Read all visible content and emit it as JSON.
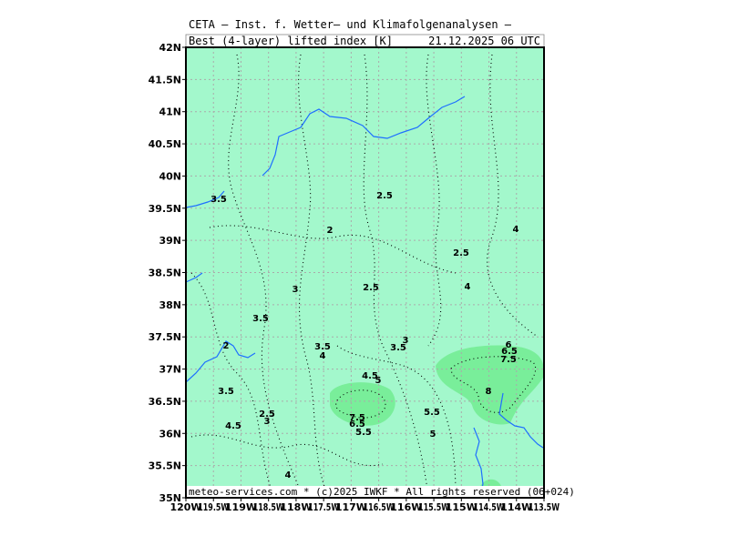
{
  "header": {
    "title": "CETA — Inst. f. Wetter— und Klimafolgenanalysen —",
    "product": "Best_(4-layer)_lifted_index_[K]",
    "valid_time": "21.12.2025 06 UTC"
  },
  "map": {
    "lat_labels": [
      "35N",
      "35.5N",
      "36N",
      "36.5N",
      "37N",
      "37.5N",
      "38N",
      "38.5N",
      "39N",
      "39.5N",
      "40N",
      "40.5N",
      "41N",
      "41.5N",
      "42N"
    ],
    "lon_labels": [
      "120W",
      "119.5W",
      "119W",
      "118.5W",
      "118W",
      "117.5W",
      "117W",
      "116.5W",
      "116W",
      "115.5W",
      "115W",
      "114.5W",
      "114W",
      "113.5W"
    ],
    "contour_labels": [
      "3.5",
      "2.5",
      "2",
      "4",
      "2.5",
      "3",
      "2.5",
      "4",
      "3.5",
      "2",
      "3.5",
      "4",
      "3",
      "3.5",
      "6",
      "6.5",
      "7.5",
      "4.5",
      "5",
      "3.5",
      "8",
      "2.5",
      "3",
      "7.5",
      "6.5",
      "5.5",
      "4.5",
      "5.5",
      "5",
      "4"
    ]
  },
  "footer": "meteo-services.com * (c)2025 IWKF * All rights reserved (06+024)"
}
